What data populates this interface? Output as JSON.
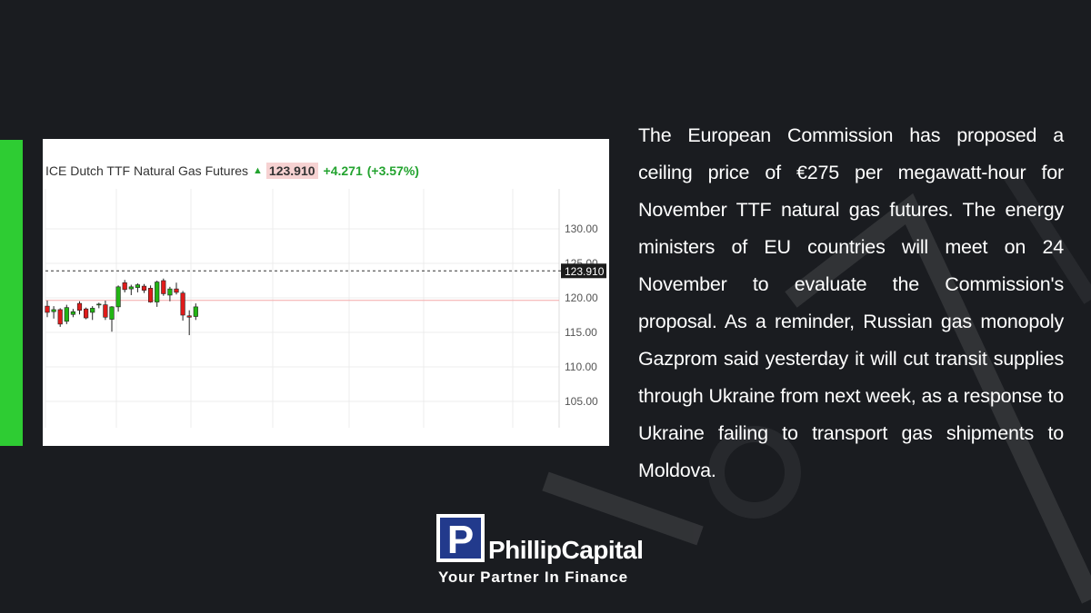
{
  "chart_header": {
    "title": "ICE Dutch TTF Natural Gas Futures",
    "price": "123.910",
    "change": "+4.271",
    "change_pct": "(+3.57%)"
  },
  "colors": {
    "accent_green": "#2ecc33",
    "up_candle": "#22b514",
    "down_candle": "#e01b1b",
    "background": "#1a1c20"
  },
  "chart_data": {
    "type": "candlestick",
    "title": "ICE Dutch TTF Natural Gas Futures",
    "ylim": [
      102,
      137
    ],
    "y_ticks": [
      105.0,
      110.0,
      115.0,
      120.0,
      125.0,
      130.0
    ],
    "y_tick_labels": [
      "105.00",
      "110.00",
      "115.00",
      "120.00",
      "125.00",
      "130.00"
    ],
    "last_price": 123.91,
    "last_price_label": "123.910",
    "reference_line": 119.64,
    "grid": true,
    "candles": [
      {
        "o": 118.8,
        "h": 119.6,
        "l": 117.2,
        "c": 117.9
      },
      {
        "o": 118.0,
        "h": 118.8,
        "l": 117.0,
        "c": 118.3
      },
      {
        "o": 118.3,
        "h": 118.5,
        "l": 115.8,
        "c": 116.2
      },
      {
        "o": 116.6,
        "h": 119.0,
        "l": 116.2,
        "c": 118.6
      },
      {
        "o": 117.6,
        "h": 118.4,
        "l": 117.2,
        "c": 118.0
      },
      {
        "o": 119.2,
        "h": 119.5,
        "l": 117.6,
        "c": 118.2
      },
      {
        "o": 118.4,
        "h": 118.6,
        "l": 116.9,
        "c": 117.1
      },
      {
        "o": 117.9,
        "h": 118.8,
        "l": 116.8,
        "c": 118.5
      },
      {
        "o": 119.0,
        "h": 119.3,
        "l": 118.5,
        "c": 119.1
      },
      {
        "o": 119.0,
        "h": 119.6,
        "l": 116.8,
        "c": 117.2
      },
      {
        "o": 116.9,
        "h": 118.8,
        "l": 115.1,
        "c": 118.7
      },
      {
        "o": 118.7,
        "h": 121.8,
        "l": 118.0,
        "c": 121.6
      },
      {
        "o": 122.2,
        "h": 122.6,
        "l": 120.8,
        "c": 121.2
      },
      {
        "o": 121.3,
        "h": 121.9,
        "l": 120.4,
        "c": 121.6
      },
      {
        "o": 121.5,
        "h": 122.1,
        "l": 120.8,
        "c": 121.9
      },
      {
        "o": 121.7,
        "h": 122.0,
        "l": 120.7,
        "c": 121.1
      },
      {
        "o": 121.4,
        "h": 121.8,
        "l": 119.3,
        "c": 119.4
      },
      {
        "o": 119.4,
        "h": 122.5,
        "l": 118.7,
        "c": 122.3
      },
      {
        "o": 122.5,
        "h": 122.8,
        "l": 120.3,
        "c": 120.6
      },
      {
        "o": 120.4,
        "h": 121.6,
        "l": 119.5,
        "c": 121.3
      },
      {
        "o": 121.3,
        "h": 122.2,
        "l": 120.5,
        "c": 120.8
      },
      {
        "o": 120.7,
        "h": 121.0,
        "l": 116.7,
        "c": 117.5
      },
      {
        "o": 117.4,
        "h": 118.2,
        "l": 114.6,
        "c": 117.2
      },
      {
        "o": 117.3,
        "h": 119.2,
        "l": 116.8,
        "c": 118.7
      }
    ]
  },
  "article": {
    "text": "The European Commission has proposed a ceiling price of €275 per megawatt-hour for November TTF natural gas futures. The energy ministers of EU countries will meet on 24 November to evaluate the Commission's proposal. As a reminder, Russian gas monopoly Gazprom said yesterday it will cut transit supplies through Ukraine from next week, as a response to Ukraine failing to transport gas shipments to Moldova."
  },
  "logo": {
    "letter": "P",
    "name": "PhillipCapital",
    "tagline": "Your Partner In Finance"
  }
}
